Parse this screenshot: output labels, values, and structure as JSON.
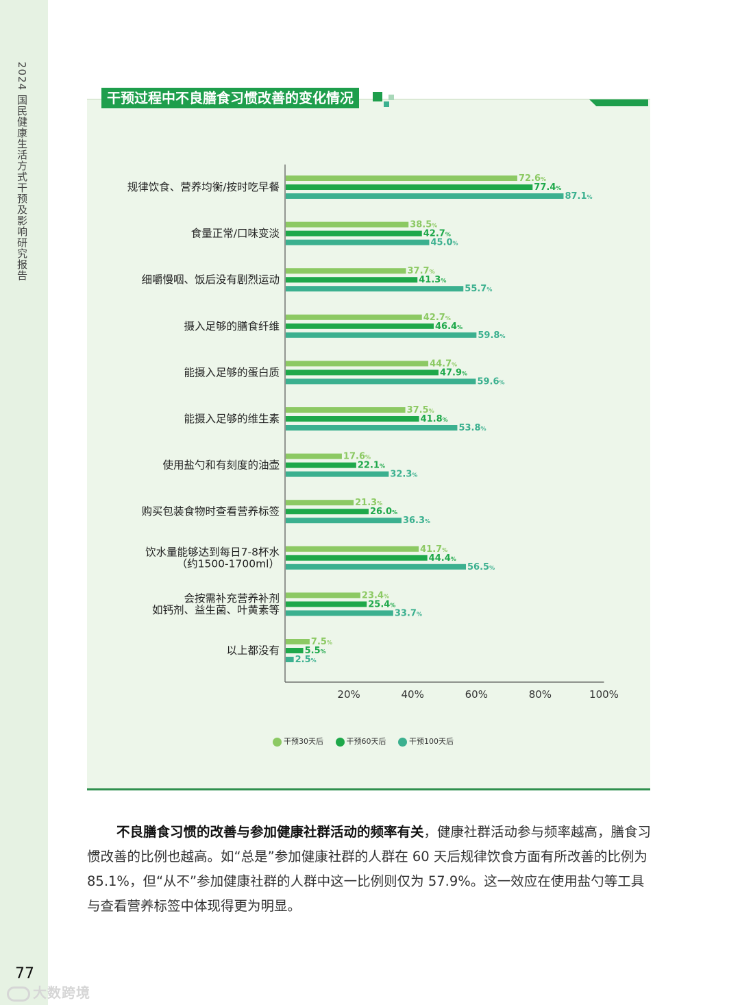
{
  "sidebar": {
    "report_title": "2024 国民健康生活方式干预及影响研究报告",
    "page_number": "77"
  },
  "watermark": "大数跨境",
  "figure": {
    "title": "干预过程中不良膳食习惯改善的变化情况"
  },
  "colors": {
    "series_30": "#8cc963",
    "series_60": "#1ea84a",
    "series_100": "#3bb08f",
    "accent": "#1e9e4c",
    "panel_bg": "#edf6ea"
  },
  "chart_data": {
    "type": "bar",
    "orientation": "horizontal",
    "title": "干预过程中不良膳食习惯改善的变化情况",
    "categories": [
      [
        "规律饮食、营养均衡/按时吃早餐"
      ],
      [
        "食量正常/口味变淡"
      ],
      [
        "细嚼慢咽、饭后没有剧烈运动"
      ],
      [
        "摄入足够的膳食纤维"
      ],
      [
        "能摄入足够的蛋白质"
      ],
      [
        "能摄入足够的维生素"
      ],
      [
        "使用盐勺和有刻度的油壶"
      ],
      [
        "购买包装食物时查看营养标签"
      ],
      [
        "饮水量能够达到每日7-8杯水",
        "（约1500-1700ml）"
      ],
      [
        "会按需补充营养补剂",
        "如钙剂、益生菌、叶黄素等"
      ],
      [
        "以上都没有"
      ]
    ],
    "series": [
      {
        "name": "干预30天后",
        "values": [
          72.6,
          38.5,
          37.7,
          42.7,
          44.7,
          37.5,
          17.6,
          21.3,
          41.7,
          23.4,
          7.5
        ]
      },
      {
        "name": "干预60天后",
        "values": [
          77.4,
          42.7,
          41.3,
          46.4,
          47.9,
          41.8,
          22.1,
          26.0,
          44.4,
          25.4,
          5.5
        ]
      },
      {
        "name": "干预100天后",
        "values": [
          87.1,
          45.0,
          55.7,
          59.8,
          59.6,
          53.8,
          32.3,
          36.3,
          56.5,
          33.7,
          2.5
        ]
      }
    ],
    "value_suffix": "%",
    "xlim": [
      0,
      100
    ],
    "xticks": [
      "20%",
      "40%",
      "60%",
      "80%",
      "100%"
    ],
    "xtick_values": [
      20,
      40,
      60,
      80,
      100
    ],
    "legend_position": "bottom",
    "grid": false
  },
  "body": {
    "bold_lead": "不良膳食习惯的改善与参加健康社群活动的频率有关",
    "rest": "，健康社群活动参与频率越高，膳食习惯改善的比例也越高。如“总是”参加健康社群的人群在 60 天后规律饮食方面有所改善的比例为 85.1%，但“从不”参加健康社群的人群中这一比例则仅为 57.9%。这一效应在使用盐勺等工具与查看营养标签中体现得更为明显。"
  }
}
